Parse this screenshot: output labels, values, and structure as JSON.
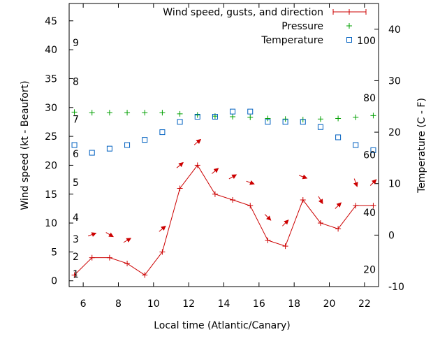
{
  "chart_data": {
    "type": "line",
    "xlabel": "Local time (Atlantic/Canary)",
    "ylabel_left": "Wind speed (kt - Beaufort)",
    "ylabel_right": "Temperature (C - F)",
    "xlim": [
      5.2,
      22.8
    ],
    "ylim_left": [
      -1,
      48
    ],
    "ylim_right": [
      -10,
      45
    ],
    "x_ticks": [
      6,
      8,
      10,
      12,
      14,
      16,
      18,
      20,
      22
    ],
    "y_ticks_left": [
      0,
      5,
      10,
      15,
      20,
      25,
      30,
      35,
      40,
      45
    ],
    "y_ticks_right": [
      -10,
      0,
      10,
      20,
      30,
      40
    ],
    "beaufort_labels": [
      {
        "label": "1",
        "y": 1.2
      },
      {
        "label": "2",
        "y": 4.2
      },
      {
        "label": "3",
        "y": 7.2
      },
      {
        "label": "4",
        "y": 11
      },
      {
        "label": "5",
        "y": 17
      },
      {
        "label": "6",
        "y": 22
      },
      {
        "label": "7",
        "y": 28
      },
      {
        "label": "8",
        "y": 34.5
      },
      {
        "label": "9",
        "y": 41.2
      }
    ],
    "fahrenheit_labels": [
      {
        "label": "20",
        "t": -6.7
      },
      {
        "label": "40",
        "t": 4.4
      },
      {
        "label": "60",
        "t": 15.6
      },
      {
        "label": "80",
        "t": 26.7
      },
      {
        "label": "100",
        "t": 37.8
      }
    ],
    "series": [
      {
        "name": "Wind speed, gusts, and direction",
        "color": "#cc0000",
        "axis": "left",
        "marker": "plus",
        "x": [
          5.5,
          6.5,
          7.5,
          8.5,
          9.5,
          10.5,
          11.5,
          12.5,
          13.5,
          14.5,
          15.5,
          16.5,
          17.5,
          18.5,
          19.5,
          20.5,
          21.5,
          22.5
        ],
        "y": [
          1,
          4,
          4,
          3,
          1,
          5,
          16,
          20,
          15,
          14,
          13,
          7,
          6,
          14,
          10,
          9,
          13,
          13
        ],
        "direction_deg": [
          null,
          250,
          300,
          240,
          null,
          230,
          230,
          230,
          230,
          240,
          290,
          315,
          225,
          290,
          330,
          225,
          340,
          225
        ]
      },
      {
        "name": "Pressure",
        "color": "#00a000",
        "axis": "left",
        "marker": "plus",
        "x": [
          5.5,
          6.5,
          7.5,
          8.5,
          9.5,
          10.5,
          11.5,
          12.5,
          13.5,
          14.5,
          15.5,
          16.5,
          17.5,
          18.5,
          19.5,
          20.5,
          21.5,
          22.5
        ],
        "y": [
          29.2,
          29.1,
          29.1,
          29.1,
          29.1,
          29.1,
          28.9,
          28.7,
          28.5,
          28.4,
          28.3,
          28.1,
          28,
          27.9,
          28,
          28.1,
          28.3,
          28.6
        ]
      },
      {
        "name": "Temperature",
        "color": "#0060c0",
        "axis": "right",
        "marker": "square",
        "x": [
          5.5,
          6.5,
          7.5,
          8.5,
          9.5,
          10.5,
          11.5,
          12.5,
          13.5,
          14.5,
          15.5,
          16.5,
          17.5,
          18.5,
          19.5,
          20.5,
          21.5,
          22.5
        ],
        "y": [
          17.5,
          16,
          16.8,
          17.5,
          18.5,
          20,
          22,
          23,
          23,
          24,
          24,
          22,
          22,
          22,
          21,
          19,
          17.5,
          16.5
        ]
      }
    ]
  }
}
